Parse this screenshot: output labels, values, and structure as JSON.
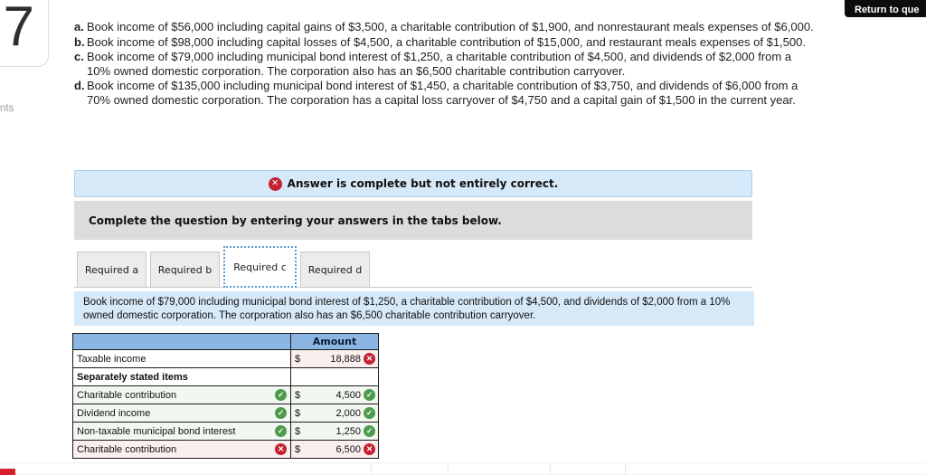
{
  "page": {
    "question_number": "7",
    "points_label_partial": "nts",
    "return_button_label": "Return to que"
  },
  "problem": {
    "items": [
      {
        "marker": "a.",
        "text": "Book income of $56,000 including capital gains of $3,500, a charitable contribution of $1,900, and nonrestaurant meals expenses of $6,000."
      },
      {
        "marker": "b.",
        "text": "Book income of $98,000 including capital losses of $4,500, a charitable contribution of $15,000, and restaurant meals expenses of $1,500."
      },
      {
        "marker": "c.",
        "text": "Book income of $79,000 including municipal bond interest of $1,250, a charitable contribution of $4,500, and dividends of $2,000 from a 10% owned domestic corporation. The corporation also has an $6,500 charitable contribution carryover."
      },
      {
        "marker": "d.",
        "text": "Book income of $135,000 including municipal bond interest of $1,450, a charitable contribution of $3,750, and dividends of $6,000 from a 70% owned domestic corporation. The corporation has a capital loss carryover of $4,750 and a capital gain of $1,500 in the current year."
      }
    ]
  },
  "status_banner": {
    "icon": "x-circle-icon",
    "text": "Answer is complete but not entirely correct."
  },
  "instruction": {
    "text": "Complete the question by entering your answers in the tabs below."
  },
  "tabs": [
    {
      "label": "Required a",
      "active": false
    },
    {
      "label": "Required b",
      "active": false
    },
    {
      "label": "Required c",
      "active": true
    },
    {
      "label": "Required d",
      "active": false
    }
  ],
  "tab_panel": {
    "text": "Book income of $79,000 including municipal bond interest of $1,250, a charitable contribution of $4,500, and dividends of $2,000 from a 10% owned domestic corporation. The corporation also has an $6,500 charitable contribution carryover."
  },
  "answers_table": {
    "amount_header": "Amount",
    "rows": [
      {
        "label": "Taxable income",
        "currency": "$",
        "value": "18,888",
        "label_icon": "none",
        "value_icon": "wrong"
      },
      {
        "label": "Separately stated items",
        "currency": "",
        "value": "",
        "label_icon": "none",
        "value_icon": "none"
      },
      {
        "label": "Charitable contribution",
        "currency": "$",
        "value": "4,500",
        "label_icon": "correct",
        "value_icon": "correct"
      },
      {
        "label": "Dividend income",
        "currency": "$",
        "value": "2,000",
        "label_icon": "correct",
        "value_icon": "correct"
      },
      {
        "label": "Non-taxable municipal bond interest",
        "currency": "$",
        "value": "1,250",
        "label_icon": "correct",
        "value_icon": "correct"
      },
      {
        "label": "Charitable contribution",
        "currency": "$",
        "value": "6,500",
        "label_icon": "wrong",
        "value_icon": "wrong"
      }
    ]
  },
  "icons": {
    "correct_glyph": "✓",
    "wrong_glyph": "✕"
  },
  "colors": {
    "banner_bg": "#d6e9f8",
    "instruction_bg": "#dcdcdc",
    "table_header_bg": "#8bb5e2",
    "correct_green": "#4e9b4e",
    "wrong_red": "#c32232",
    "active_tab_border": "#5b9bd5",
    "wrong_cell_bg": "#fbeeee",
    "correct_cell_bg": "#f3f7f1"
  }
}
